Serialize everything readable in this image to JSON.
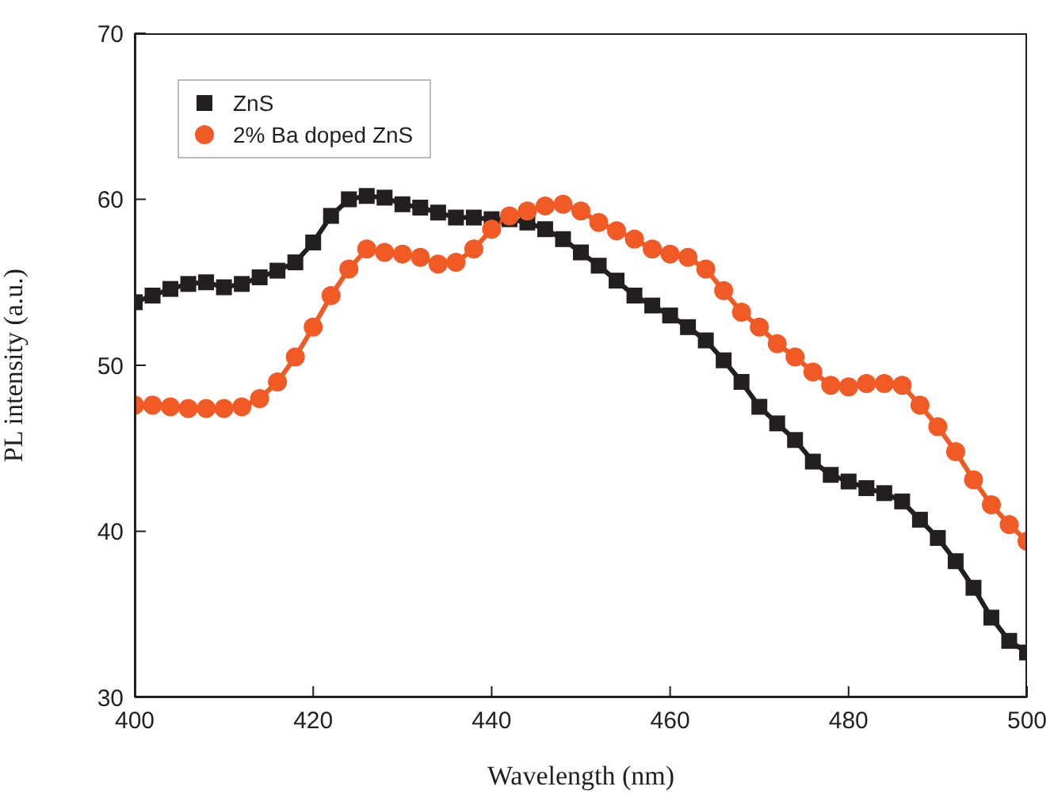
{
  "chart_data": {
    "type": "line",
    "xlabel": "Wavelength (nm)",
    "ylabel": "PL intensity (a.u.)",
    "x": [
      400,
      402,
      404,
      406,
      408,
      410,
      412,
      414,
      416,
      418,
      420,
      422,
      424,
      426,
      428,
      430,
      432,
      434,
      436,
      438,
      440,
      442,
      444,
      446,
      448,
      450,
      452,
      454,
      456,
      458,
      460,
      462,
      464,
      466,
      468,
      470,
      472,
      474,
      476,
      478,
      480,
      482,
      484,
      486,
      488,
      490,
      492,
      494,
      496,
      498,
      500
    ],
    "series": [
      {
        "name": "ZnS",
        "color": "#231f20",
        "marker": "square",
        "values": [
          53.8,
          54.2,
          54.6,
          54.9,
          55.0,
          54.7,
          54.9,
          55.3,
          55.7,
          56.2,
          57.4,
          59.0,
          60.0,
          60.2,
          60.1,
          59.7,
          59.5,
          59.2,
          58.9,
          58.9,
          58.8,
          58.8,
          58.6,
          58.2,
          57.6,
          56.8,
          56.0,
          55.1,
          54.2,
          53.6,
          53.0,
          52.3,
          51.5,
          50.3,
          49.0,
          47.5,
          46.5,
          45.5,
          44.2,
          43.4,
          43.0,
          42.6,
          42.3,
          41.8,
          40.7,
          39.6,
          38.2,
          36.6,
          34.8,
          33.4,
          32.7
        ]
      },
      {
        "name": "2% Ba doped ZnS",
        "color": "#f15a24",
        "marker": "circle",
        "values": [
          47.6,
          47.6,
          47.5,
          47.4,
          47.4,
          47.4,
          47.5,
          48.0,
          49.0,
          50.5,
          52.3,
          54.2,
          55.8,
          57.0,
          56.8,
          56.7,
          56.5,
          56.1,
          56.2,
          57.0,
          58.2,
          59.0,
          59.3,
          59.6,
          59.7,
          59.3,
          58.6,
          58.1,
          57.6,
          57.0,
          56.7,
          56.5,
          55.8,
          54.5,
          53.2,
          52.3,
          51.3,
          50.5,
          49.6,
          48.8,
          48.7,
          48.9,
          48.9,
          48.8,
          47.6,
          46.3,
          44.8,
          43.1,
          41.6,
          40.4,
          39.4
        ]
      }
    ],
    "xlim": [
      400,
      500
    ],
    "xticks": [
      400,
      420,
      440,
      460,
      480,
      500
    ],
    "ylim": [
      30,
      70
    ],
    "yticks": [
      30,
      40,
      50,
      60,
      70
    ],
    "grid": false,
    "legend": "top left"
  }
}
